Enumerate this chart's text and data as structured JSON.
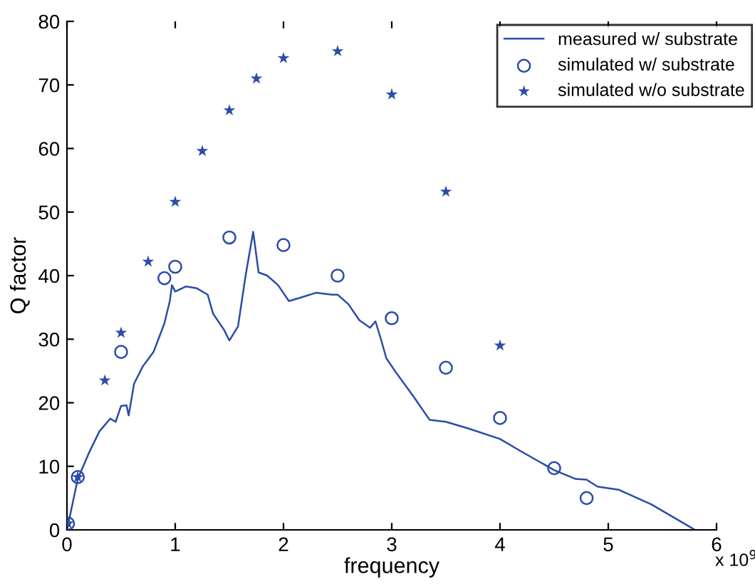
{
  "chart_data": {
    "type": "line",
    "xlabel": "frequency",
    "ylabel": "Q factor",
    "annotations": [
      "x 10$^{9}$"
    ],
    "series": [
      {
        "name": "measured w/ substrate",
        "color": "#2b4ca8",
        "marker": "none",
        "line_style": "solid",
        "x": [
          0,
          0.1,
          0.2,
          0.3,
          0.4,
          0.45,
          0.5,
          0.55,
          0.57,
          0.62,
          0.7,
          0.8,
          0.9,
          0.95,
          0.97,
          1.0,
          1.1,
          1.2,
          1.3,
          1.35,
          1.45,
          1.5,
          1.58,
          1.65,
          1.72,
          1.77,
          1.85,
          1.95,
          2.05,
          2.15,
          2.3,
          2.45,
          2.5,
          2.6,
          2.7,
          2.8,
          2.85,
          2.9,
          2.95,
          3.05,
          3.2,
          3.35,
          3.5,
          3.7,
          4.0,
          4.2,
          4.5,
          4.7,
          4.8,
          4.9,
          5.1,
          5.4,
          5.6,
          5.8
        ],
        "values": [
          0,
          8,
          12,
          15.5,
          17.5,
          17,
          19.5,
          19.6,
          18,
          23,
          25.7,
          28,
          32.5,
          36,
          38.5,
          37.5,
          38.3,
          38,
          37,
          34,
          31.5,
          29.8,
          32,
          40,
          46.9,
          40.5,
          40,
          38.5,
          36,
          36.5,
          37.3,
          37,
          37,
          35.5,
          33,
          31.8,
          32.8,
          30,
          27,
          24.5,
          21,
          17.3,
          17,
          16,
          14.3,
          12.3,
          9.4,
          8,
          7.9,
          6.8,
          6.3,
          4,
          2,
          0
        ]
      },
      {
        "name": "simulated w/ substrate",
        "type": "scatter",
        "color": "#2b4ca8",
        "marker": "circle",
        "x": [
          0.01,
          0.1,
          0.5,
          0.9,
          1.0,
          1.5,
          2.0,
          2.5,
          3.0,
          3.5,
          4.0,
          4.5,
          4.8
        ],
        "values": [
          1,
          8.3,
          28,
          39.6,
          41.4,
          46,
          44.8,
          40,
          33.3,
          25.5,
          17.6,
          9.7,
          5
        ]
      },
      {
        "name": "simulated w/o substrate",
        "type": "scatter",
        "color": "#2b4ca8",
        "marker": "star",
        "x": [
          0.01,
          0.1,
          0.35,
          0.5,
          0.75,
          1.0,
          1.25,
          1.5,
          1.75,
          2.0,
          2.5,
          3.0,
          3.5,
          4.0
        ],
        "values": [
          1,
          8.3,
          23.5,
          31,
          42.2,
          51.6,
          59.6,
          66,
          71,
          74.2,
          75.3,
          68.5,
          53.2,
          29
        ]
      }
    ],
    "xlim": [
      0,
      6
    ],
    "xticks": [
      0,
      1,
      2,
      3,
      4,
      5,
      6
    ],
    "ylim": [
      0,
      80
    ],
    "yticks": [
      0,
      10,
      20,
      30,
      40,
      50,
      60,
      70,
      80
    ],
    "grid": false,
    "legend": "top right"
  }
}
